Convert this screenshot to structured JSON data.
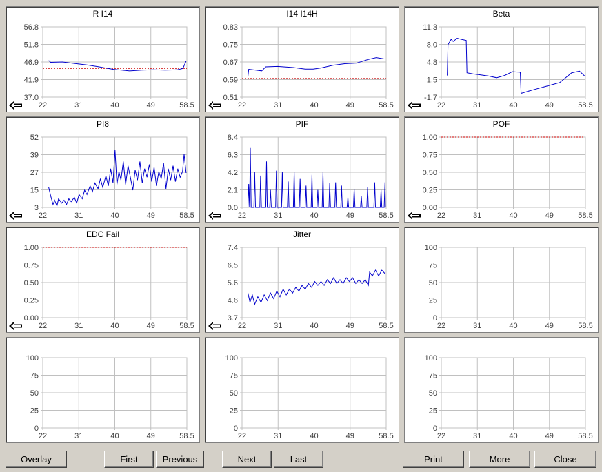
{
  "x_ticks": [
    "22",
    "31",
    "40",
    "49",
    "58.5"
  ],
  "x_range": [
    22,
    58.5
  ],
  "colors": {
    "series": "#0000cc",
    "limit": "#cc0000",
    "background": "#d4d0c8"
  },
  "back_icon": "arrow-left-icon",
  "panels": [
    {
      "id": "r-i14",
      "title": "R I14",
      "y_ticks": [
        "56.8",
        "51.8",
        "46.9",
        "41.9",
        "37.0"
      ],
      "ylim": [
        37.0,
        56.8
      ],
      "back_arrow": true,
      "limit": 45.1,
      "series": [
        [
          23.5,
          47.3
        ],
        [
          24,
          46.8
        ],
        [
          27,
          46.9
        ],
        [
          30,
          46.5
        ],
        [
          33,
          46.1
        ],
        [
          36,
          45.6
        ],
        [
          38,
          45.2
        ],
        [
          40,
          44.8
        ],
        [
          42,
          44.6
        ],
        [
          44,
          44.4
        ],
        [
          47,
          44.6
        ],
        [
          50,
          44.7
        ],
        [
          53,
          44.6
        ],
        [
          56,
          44.7
        ],
        [
          57.5,
          45.1
        ],
        [
          58.3,
          47.2
        ]
      ]
    },
    {
      "id": "i14-i14h",
      "title": "I14 I14H",
      "y_ticks": [
        "0.83",
        "0.75",
        "0.67",
        "0.59",
        "0.51"
      ],
      "ylim": [
        0.51,
        0.83
      ],
      "back_arrow": true,
      "limit": 0.595,
      "series": [
        [
          23.5,
          0.606
        ],
        [
          23.7,
          0.637
        ],
        [
          27,
          0.63
        ],
        [
          28,
          0.648
        ],
        [
          31,
          0.65
        ],
        [
          35,
          0.645
        ],
        [
          38,
          0.638
        ],
        [
          40,
          0.638
        ],
        [
          42,
          0.643
        ],
        [
          45,
          0.655
        ],
        [
          48,
          0.662
        ],
        [
          51,
          0.665
        ],
        [
          54,
          0.682
        ],
        [
          56,
          0.69
        ],
        [
          58,
          0.684
        ]
      ]
    },
    {
      "id": "beta",
      "title": "Beta",
      "y_ticks": [
        "11.3",
        "8.0",
        "4.8",
        "1.5",
        "-1.7"
      ],
      "ylim": [
        -1.7,
        11.3
      ],
      "back_arrow": true,
      "series": [
        [
          23.5,
          2.3
        ],
        [
          23.7,
          8.0
        ],
        [
          24.5,
          9.0
        ],
        [
          25,
          8.6
        ],
        [
          26,
          9.2
        ],
        [
          27,
          9.0
        ],
        [
          28.3,
          8.8
        ],
        [
          28.5,
          2.8
        ],
        [
          30,
          2.6
        ],
        [
          32,
          2.4
        ],
        [
          34,
          2.2
        ],
        [
          36,
          1.9
        ],
        [
          38,
          2.3
        ],
        [
          40,
          3.0
        ],
        [
          42,
          2.9
        ],
        [
          42.2,
          -1.0
        ],
        [
          44,
          -0.6
        ],
        [
          46,
          -0.2
        ],
        [
          48,
          0.2
        ],
        [
          50,
          0.6
        ],
        [
          52,
          1.0
        ],
        [
          53,
          1.6
        ],
        [
          55,
          2.8
        ],
        [
          57,
          3.1
        ],
        [
          58.3,
          2.2
        ]
      ]
    },
    {
      "id": "pi8",
      "title": "PI8",
      "y_ticks": [
        "52",
        "39",
        "27",
        "15",
        "3"
      ],
      "ylim": [
        3,
        52
      ],
      "back_arrow": true,
      "series": [
        [
          23.5,
          17
        ],
        [
          24,
          11
        ],
        [
          24.6,
          5
        ],
        [
          25,
          8
        ],
        [
          25.6,
          4
        ],
        [
          26,
          9
        ],
        [
          26.8,
          6
        ],
        [
          27.4,
          8
        ],
        [
          28,
          5
        ],
        [
          28.6,
          9
        ],
        [
          29.2,
          7
        ],
        [
          30,
          10
        ],
        [
          30.6,
          6
        ],
        [
          31.2,
          12
        ],
        [
          32,
          9
        ],
        [
          32.6,
          15
        ],
        [
          33.2,
          12
        ],
        [
          34,
          18
        ],
        [
          34.6,
          14
        ],
        [
          35.2,
          20
        ],
        [
          36,
          16
        ],
        [
          36.6,
          23
        ],
        [
          37.2,
          17
        ],
        [
          38,
          25
        ],
        [
          38.6,
          18
        ],
        [
          39.2,
          30
        ],
        [
          39.8,
          20
        ],
        [
          40.3,
          43
        ],
        [
          40.8,
          19
        ],
        [
          41.3,
          28
        ],
        [
          41.8,
          22
        ],
        [
          42.4,
          35
        ],
        [
          43,
          19
        ],
        [
          43.6,
          32
        ],
        [
          44.2,
          24
        ],
        [
          44.8,
          15
        ],
        [
          45.4,
          29
        ],
        [
          46,
          22
        ],
        [
          46.6,
          35
        ],
        [
          47.2,
          20
        ],
        [
          47.8,
          30
        ],
        [
          48.4,
          24
        ],
        [
          49,
          33
        ],
        [
          49.6,
          21
        ],
        [
          50.2,
          31
        ],
        [
          50.8,
          18
        ],
        [
          51.4,
          28
        ],
        [
          52,
          23
        ],
        [
          52.6,
          34
        ],
        [
          53.2,
          16
        ],
        [
          53.8,
          30
        ],
        [
          54.4,
          22
        ],
        [
          55,
          32
        ],
        [
          55.6,
          21
        ],
        [
          56.2,
          30
        ],
        [
          56.8,
          24
        ],
        [
          57.4,
          28
        ],
        [
          57.8,
          40
        ],
        [
          58.3,
          27
        ]
      ]
    },
    {
      "id": "pif",
      "title": "PIF",
      "y_ticks": [
        "8.4",
        "6.3",
        "4.2",
        "2.1",
        "0.0"
      ],
      "ylim": [
        0,
        8.4
      ],
      "back_arrow": true,
      "series": [
        [
          23.5,
          0
        ],
        [
          23.7,
          2.8
        ],
        [
          23.9,
          0
        ],
        [
          24.1,
          7.1
        ],
        [
          24.3,
          0
        ],
        [
          25,
          0
        ],
        [
          25.2,
          4.2
        ],
        [
          25.4,
          0
        ],
        [
          26.5,
          0
        ],
        [
          26.7,
          3.8
        ],
        [
          26.9,
          0
        ],
        [
          28,
          0
        ],
        [
          28.2,
          5.5
        ],
        [
          28.4,
          0
        ],
        [
          29,
          0
        ],
        [
          29.2,
          2.1
        ],
        [
          29.4,
          0
        ],
        [
          30.5,
          0
        ],
        [
          30.7,
          4.4
        ],
        [
          30.9,
          0
        ],
        [
          32,
          0
        ],
        [
          32.2,
          4.2
        ],
        [
          32.4,
          0
        ],
        [
          33.5,
          0
        ],
        [
          33.7,
          3.1
        ],
        [
          33.9,
          0
        ],
        [
          35,
          0
        ],
        [
          35.2,
          4.2
        ],
        [
          35.4,
          0
        ],
        [
          36.5,
          0
        ],
        [
          36.7,
          3.4
        ],
        [
          36.9,
          0
        ],
        [
          38,
          0
        ],
        [
          38.2,
          2.6
        ],
        [
          38.4,
          0
        ],
        [
          39.5,
          0
        ],
        [
          39.7,
          3.9
        ],
        [
          39.9,
          0
        ],
        [
          41,
          0
        ],
        [
          41.2,
          2.1
        ],
        [
          41.4,
          0
        ],
        [
          42.3,
          0
        ],
        [
          42.5,
          4.2
        ],
        [
          42.7,
          0
        ],
        [
          44,
          0
        ],
        [
          44.2,
          2.9
        ],
        [
          44.4,
          0
        ],
        [
          45.5,
          0
        ],
        [
          45.7,
          3.0
        ],
        [
          45.9,
          0
        ],
        [
          47,
          0
        ],
        [
          47.2,
          2.6
        ],
        [
          47.4,
          0
        ],
        [
          48.6,
          0
        ],
        [
          48.8,
          1.2
        ],
        [
          49,
          0
        ],
        [
          50.2,
          0
        ],
        [
          50.4,
          2.2
        ],
        [
          50.6,
          0
        ],
        [
          52,
          0
        ],
        [
          52.2,
          1.4
        ],
        [
          52.4,
          0
        ],
        [
          53.6,
          0
        ],
        [
          53.8,
          2.4
        ],
        [
          54,
          0
        ],
        [
          55.4,
          0
        ],
        [
          55.6,
          3.0
        ],
        [
          55.8,
          0
        ],
        [
          57,
          0
        ],
        [
          57.2,
          2.1
        ],
        [
          57.4,
          0
        ],
        [
          58,
          0
        ],
        [
          58.2,
          3.0
        ],
        [
          58.3,
          0
        ]
      ]
    },
    {
      "id": "pof",
      "title": "POF",
      "y_ticks": [
        "1.00",
        "0.75",
        "0.50",
        "0.25",
        "0.00"
      ],
      "ylim": [
        0,
        1
      ],
      "back_arrow": true,
      "limit": 1.0,
      "series": []
    },
    {
      "id": "edc-fail",
      "title": "EDC Fail",
      "y_ticks": [
        "1.00",
        "0.75",
        "0.50",
        "0.25",
        "0.00"
      ],
      "ylim": [
        0,
        1
      ],
      "back_arrow": true,
      "limit": 1.0,
      "series": []
    },
    {
      "id": "jitter",
      "title": "Jitter",
      "y_ticks": [
        "7.4",
        "6.5",
        "5.6",
        "4.6",
        "3.7"
      ],
      "ylim": [
        3.7,
        7.4
      ],
      "back_arrow": true,
      "series": [
        [
          23.5,
          5.0
        ],
        [
          24,
          4.5
        ],
        [
          24.6,
          4.9
        ],
        [
          25.2,
          4.4
        ],
        [
          26,
          4.8
        ],
        [
          26.8,
          4.5
        ],
        [
          27.6,
          4.9
        ],
        [
          28.4,
          4.6
        ],
        [
          29.2,
          5.0
        ],
        [
          30,
          4.7
        ],
        [
          30.8,
          5.1
        ],
        [
          31.6,
          4.8
        ],
        [
          32.4,
          5.2
        ],
        [
          33.2,
          4.9
        ],
        [
          34,
          5.2
        ],
        [
          34.8,
          5.0
        ],
        [
          35.6,
          5.3
        ],
        [
          36.4,
          5.1
        ],
        [
          37.2,
          5.4
        ],
        [
          38,
          5.2
        ],
        [
          38.8,
          5.5
        ],
        [
          39.6,
          5.3
        ],
        [
          40.4,
          5.6
        ],
        [
          41.2,
          5.4
        ],
        [
          42,
          5.6
        ],
        [
          42.8,
          5.4
        ],
        [
          43.6,
          5.7
        ],
        [
          44.4,
          5.5
        ],
        [
          45.2,
          5.8
        ],
        [
          46,
          5.5
        ],
        [
          46.8,
          5.7
        ],
        [
          47.6,
          5.5
        ],
        [
          48.4,
          5.8
        ],
        [
          49.2,
          5.6
        ],
        [
          50,
          5.8
        ],
        [
          50.8,
          5.5
        ],
        [
          51.6,
          5.7
        ],
        [
          52.4,
          5.5
        ],
        [
          53.2,
          5.7
        ],
        [
          54,
          5.4
        ],
        [
          54.3,
          6.1
        ],
        [
          55,
          5.9
        ],
        [
          55.8,
          6.2
        ],
        [
          56.6,
          5.9
        ],
        [
          57.4,
          6.2
        ],
        [
          58.3,
          6.0
        ]
      ]
    },
    {
      "id": "empty-1",
      "title": "",
      "y_ticks": [
        "100",
        "75",
        "50",
        "25",
        "0"
      ],
      "ylim": [
        0,
        100
      ],
      "back_arrow": false,
      "series": []
    },
    {
      "id": "empty-2",
      "title": "",
      "y_ticks": [
        "100",
        "75",
        "50",
        "25",
        "0"
      ],
      "ylim": [
        0,
        100
      ],
      "back_arrow": false,
      "series": []
    },
    {
      "id": "empty-3",
      "title": "",
      "y_ticks": [
        "100",
        "75",
        "50",
        "25",
        "0"
      ],
      "ylim": [
        0,
        100
      ],
      "back_arrow": false,
      "series": []
    },
    {
      "id": "empty-4",
      "title": "",
      "y_ticks": [
        "100",
        "75",
        "50",
        "25",
        "0"
      ],
      "ylim": [
        0,
        100
      ],
      "back_arrow": false,
      "series": []
    }
  ],
  "buttons": {
    "overlay": "Overlay",
    "first": "First",
    "previous": "Previous",
    "next": "Next",
    "last": "Last",
    "print": "Print",
    "more": "More",
    "close": "Close"
  }
}
